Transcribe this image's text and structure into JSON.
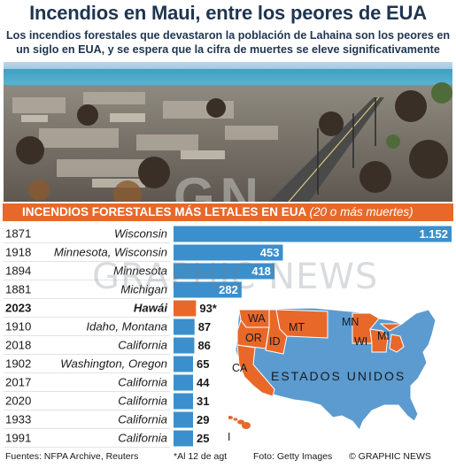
{
  "header": {
    "title": "Incendios en Maui, entre los peores de EUA",
    "subtitle": "Los incendios forestales que devastaron la población de Lahaina son los peores en un siglo en EUA, y se espera que la cifra de muertes se eleve significativamente"
  },
  "section": {
    "title": "INCENDIOS FORESTALES MÁS LETALES EN EUA",
    "note": "(20 o más muertes)"
  },
  "chart_data": {
    "type": "bar",
    "orientation": "horizontal",
    "categories": [
      "1871",
      "1918",
      "1894",
      "1881",
      "2023",
      "1910",
      "2018",
      "1902",
      "2017",
      "2020",
      "1933",
      "1991"
    ],
    "locations": [
      "Wisconsin",
      "Minnesota, Wisconsin",
      "Minnesota",
      "Michigan",
      "Hawái",
      "Idaho, Montana",
      "California",
      "Washington, Oregon",
      "California",
      "California",
      "California",
      "California"
    ],
    "values": [
      1152,
      453,
      418,
      282,
      93,
      87,
      86,
      65,
      44,
      31,
      29,
      25
    ],
    "value_labels": [
      "1.152",
      "453",
      "418",
      "282",
      "93*",
      "87",
      "86",
      "65",
      "44",
      "31",
      "29",
      "25"
    ],
    "highlight_index": 4,
    "colors": {
      "default": "#3b8fcc",
      "highlight": "#e8682a"
    }
  },
  "map": {
    "country_label": "ESTADOS UNIDOS",
    "states": [
      "WA",
      "OR",
      "ID",
      "MT",
      "CA",
      "MN",
      "WI",
      "MI",
      "HI"
    ],
    "colors": {
      "highlight": "#e8682a",
      "base": "#5b9bd0"
    }
  },
  "watermark": "GRAPHIC NEWS",
  "footer": {
    "sources": "Fuentes: NFPA Archive, Reuters",
    "note": "*Al 12 de agt",
    "photo": "Foto: Getty Images",
    "credit": "© GRAPHIC NEWS"
  }
}
